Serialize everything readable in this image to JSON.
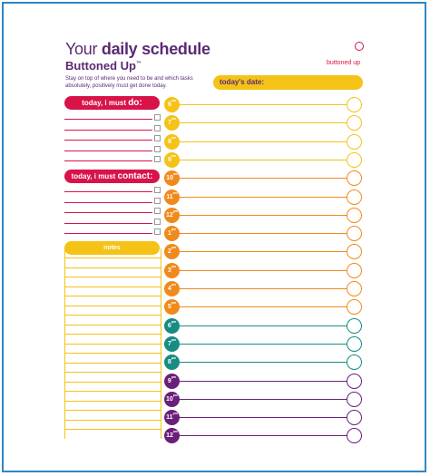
{
  "header": {
    "title_prefix": "Your ",
    "title_bold": "daily schedule",
    "subtitle": "Buttoned Up",
    "subtitle_mark": "™",
    "description": "Stay on top of where you need to be and which tasks absolutely, positively must get done today."
  },
  "logo": {
    "text": "buttoned up",
    "mark_icon": "button-icon"
  },
  "date_field": {
    "label": "today's date:",
    "value": ""
  },
  "must_do": {
    "label": "today, i must ",
    "label_bold": "do:",
    "rows": 5
  },
  "must_contact": {
    "label": "today, i must ",
    "label_bold": "contact:",
    "rows": 5
  },
  "notes": {
    "label": "notes"
  },
  "hours": [
    {
      "num": "6",
      "suf": "am",
      "color": "#f5c217"
    },
    {
      "num": "7",
      "suf": "am",
      "color": "#f5c217"
    },
    {
      "num": "8",
      "suf": "am",
      "color": "#f5c217"
    },
    {
      "num": "9",
      "suf": "am",
      "color": "#f5c217"
    },
    {
      "num": "10",
      "suf": "am",
      "color": "#f08a1c"
    },
    {
      "num": "11",
      "suf": "am",
      "color": "#f08a1c"
    },
    {
      "num": "12",
      "suf": "pm",
      "color": "#f08a1c"
    },
    {
      "num": "1",
      "suf": "pm",
      "color": "#f08a1c"
    },
    {
      "num": "2",
      "suf": "pm",
      "color": "#f08a1c"
    },
    {
      "num": "3",
      "suf": "pm",
      "color": "#f08a1c"
    },
    {
      "num": "4",
      "suf": "pm",
      "color": "#f08a1c"
    },
    {
      "num": "5",
      "suf": "pm",
      "color": "#f08a1c"
    },
    {
      "num": "6",
      "suf": "pm",
      "color": "#168c84"
    },
    {
      "num": "7",
      "suf": "pm",
      "color": "#168c84"
    },
    {
      "num": "8",
      "suf": "pm",
      "color": "#168c84"
    },
    {
      "num": "9",
      "suf": "pm",
      "color": "#6a1f7a"
    },
    {
      "num": "10",
      "suf": "pm",
      "color": "#6a1f7a"
    },
    {
      "num": "11",
      "suf": "pm",
      "color": "#6a1f7a"
    },
    {
      "num": "12",
      "suf": "am",
      "color": "#6a1f7a"
    }
  ],
  "colors": {
    "frame": "#2f86c4",
    "purple": "#5b2a73",
    "red": "#d8134a",
    "yellow": "#f5c217"
  }
}
